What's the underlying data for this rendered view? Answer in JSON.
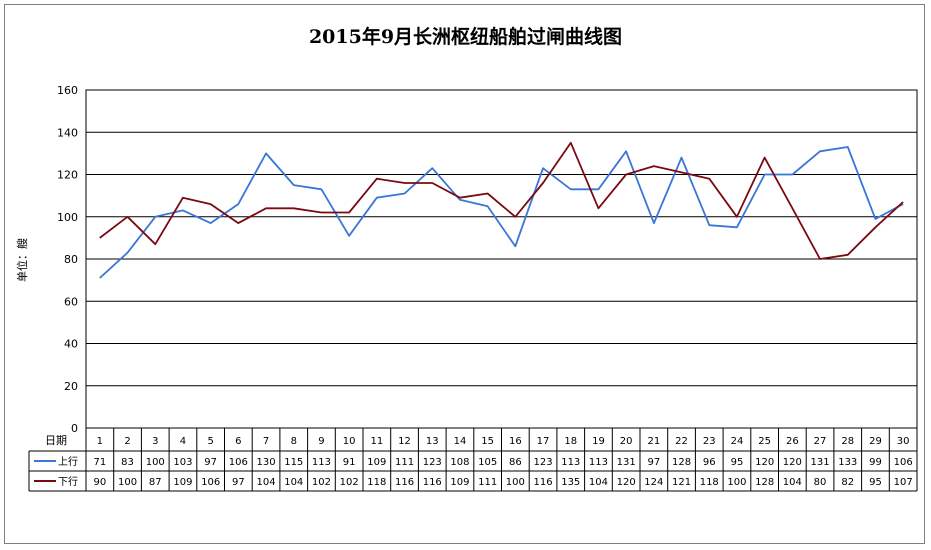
{
  "chart_data": {
    "type": "line",
    "title": "2015年9月长洲枢纽船舶过闸曲线图",
    "ylabel": "单位：艘",
    "xlabel": "日期",
    "ylim": [
      0,
      160
    ],
    "yticks": [
      0,
      20,
      40,
      60,
      80,
      100,
      120,
      140,
      160
    ],
    "grid": true,
    "categories": [
      "1",
      "2",
      "3",
      "4",
      "5",
      "6",
      "7",
      "8",
      "9",
      "10",
      "11",
      "12",
      "13",
      "14",
      "15",
      "16",
      "17",
      "18",
      "19",
      "20",
      "21",
      "22",
      "23",
      "24",
      "25",
      "26",
      "27",
      "28",
      "29",
      "30"
    ],
    "series": [
      {
        "name": "上行",
        "color": "#3a75d8",
        "values": [
          71,
          83,
          100,
          103,
          97,
          106,
          130,
          115,
          113,
          91,
          109,
          111,
          123,
          108,
          105,
          86,
          123,
          113,
          113,
          131,
          97,
          128,
          96,
          95,
          120,
          120,
          131,
          133,
          99,
          106
        ]
      },
      {
        "name": "下行",
        "color": "#7a0a12",
        "values": [
          90,
          100,
          87,
          109,
          106,
          97,
          104,
          104,
          102,
          102,
          118,
          116,
          116,
          109,
          111,
          100,
          116,
          135,
          104,
          120,
          124,
          121,
          118,
          100,
          128,
          104,
          80,
          82,
          95,
          107
        ]
      }
    ]
  }
}
